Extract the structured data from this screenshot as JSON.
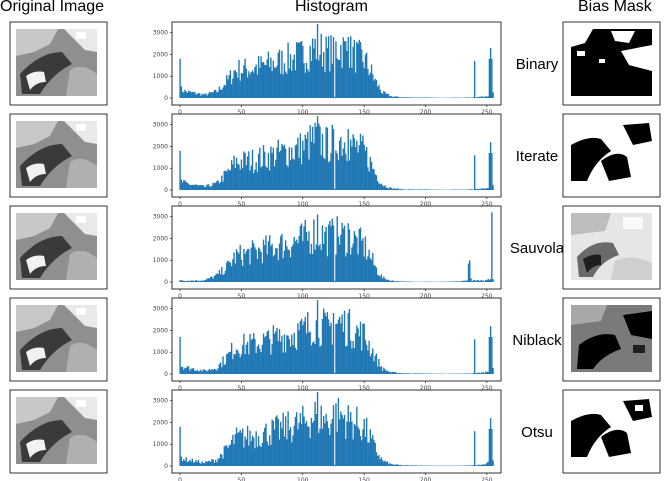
{
  "headers": {
    "original": "Original Image",
    "histogram": "Histogram",
    "mask": "Bias Mask"
  },
  "bar_color": "#1f77b4",
  "chart_data": [
    {
      "type": "bar",
      "method": "Binary",
      "title": "",
      "xlabel": "",
      "ylabel": "",
      "xlim": [
        0,
        256
      ],
      "ylim": [
        0,
        3400
      ],
      "xticks": [
        0,
        50,
        100,
        150,
        200,
        250
      ],
      "yticks": [
        0,
        1000,
        2000,
        3000
      ],
      "yticklabels": [
        "0",
        "1000",
        "2000",
        "3000"
      ],
      "base_profile": [
        [
          0,
          1800
        ],
        [
          1,
          400
        ],
        [
          5,
          300
        ],
        [
          20,
          150
        ],
        [
          30,
          300
        ],
        [
          40,
          900
        ],
        [
          45,
          1300
        ],
        [
          60,
          1400
        ],
        [
          80,
          1700
        ],
        [
          100,
          2000
        ],
        [
          110,
          2400
        ],
        [
          120,
          2100
        ],
        [
          130,
          2400
        ],
        [
          140,
          2100
        ],
        [
          150,
          1800
        ],
        [
          155,
          1300
        ],
        [
          160,
          700
        ],
        [
          165,
          250
        ],
        [
          172,
          80
        ],
        [
          182,
          30
        ],
        [
          215,
          12
        ],
        [
          233,
          18
        ],
        [
          240,
          35
        ],
        [
          248,
          70
        ],
        [
          252,
          160
        ],
        [
          255,
          200
        ]
      ],
      "spikes": [
        [
          0,
          1800
        ],
        [
          112,
          3400
        ],
        [
          125,
          2800
        ],
        [
          137,
          2800
        ],
        [
          240,
          1700
        ],
        [
          252,
          1800
        ],
        [
          253,
          2300
        ],
        [
          254,
          1800
        ]
      ],
      "dips": [
        [
          126,
          50
        ]
      ],
      "mask_kind": "binary"
    },
    {
      "type": "bar",
      "method": "Iterate",
      "title": "",
      "xlabel": "",
      "ylabel": "",
      "xlim": [
        0,
        256
      ],
      "ylim": [
        0,
        3400
      ],
      "xticks": [
        0,
        50,
        100,
        150,
        200,
        250
      ],
      "yticks": [
        0,
        1000,
        2000,
        3000
      ],
      "yticklabels": [
        "0",
        "1000",
        "2000",
        "3000"
      ],
      "base_profile": [
        [
          0,
          1800
        ],
        [
          1,
          400
        ],
        [
          5,
          300
        ],
        [
          20,
          150
        ],
        [
          30,
          300
        ],
        [
          40,
          900
        ],
        [
          45,
          1300
        ],
        [
          60,
          1400
        ],
        [
          80,
          1700
        ],
        [
          100,
          2000
        ],
        [
          110,
          2400
        ],
        [
          120,
          2100
        ],
        [
          130,
          2400
        ],
        [
          140,
          2100
        ],
        [
          150,
          1800
        ],
        [
          155,
          1300
        ],
        [
          160,
          700
        ],
        [
          165,
          250
        ],
        [
          172,
          80
        ],
        [
          182,
          30
        ],
        [
          215,
          12
        ],
        [
          233,
          18
        ],
        [
          240,
          35
        ],
        [
          248,
          70
        ],
        [
          252,
          160
        ],
        [
          255,
          200
        ]
      ],
      "spikes": [
        [
          0,
          1800
        ],
        [
          112,
          3400
        ],
        [
          125,
          2800
        ],
        [
          137,
          2800
        ],
        [
          240,
          1600
        ],
        [
          252,
          1700
        ],
        [
          253,
          2200
        ],
        [
          254,
          1700
        ]
      ],
      "dips": [
        [
          126,
          50
        ]
      ],
      "mask_kind": "iterate"
    },
    {
      "type": "bar",
      "method": "Sauvola",
      "title": "",
      "xlabel": "",
      "ylabel": "",
      "xlim": [
        0,
        256
      ],
      "ylim": [
        0,
        3400
      ],
      "xticks": [
        0,
        50,
        100,
        150,
        200,
        250
      ],
      "yticks": [
        0,
        1000,
        2000,
        3000
      ],
      "yticklabels": [
        "0",
        "1000",
        "2000",
        "3000"
      ],
      "base_profile": [
        [
          0,
          100
        ],
        [
          5,
          60
        ],
        [
          20,
          80
        ],
        [
          30,
          300
        ],
        [
          40,
          800
        ],
        [
          45,
          1200
        ],
        [
          60,
          1400
        ],
        [
          80,
          1700
        ],
        [
          100,
          2000
        ],
        [
          110,
          2300
        ],
        [
          120,
          2100
        ],
        [
          130,
          2200
        ],
        [
          140,
          2000
        ],
        [
          150,
          1700
        ],
        [
          155,
          1200
        ],
        [
          160,
          600
        ],
        [
          165,
          200
        ],
        [
          172,
          60
        ],
        [
          182,
          20
        ],
        [
          215,
          10
        ],
        [
          228,
          30
        ],
        [
          233,
          60
        ],
        [
          236,
          260
        ],
        [
          238,
          80
        ],
        [
          248,
          50
        ],
        [
          252,
          150
        ],
        [
          255,
          150
        ]
      ],
      "spikes": [
        [
          112,
          3100
        ],
        [
          125,
          2600
        ],
        [
          137,
          2700
        ],
        [
          235,
          850
        ],
        [
          236,
          1000
        ],
        [
          254,
          3200
        ]
      ],
      "dips": [
        [
          126,
          50
        ]
      ],
      "mask_kind": "sauvola"
    },
    {
      "type": "bar",
      "method": "Niblack",
      "title": "",
      "xlabel": "",
      "ylabel": "",
      "xlim": [
        0,
        256
      ],
      "ylim": [
        0,
        3400
      ],
      "xticks": [
        0,
        50,
        100,
        150,
        200,
        250
      ],
      "yticks": [
        0,
        1000,
        2000,
        3000
      ],
      "yticklabels": [
        "0",
        "1000",
        "2000",
        "3000"
      ],
      "base_profile": [
        [
          0,
          1800
        ],
        [
          1,
          400
        ],
        [
          5,
          300
        ],
        [
          20,
          150
        ],
        [
          30,
          300
        ],
        [
          40,
          900
        ],
        [
          45,
          1300
        ],
        [
          60,
          1400
        ],
        [
          80,
          1700
        ],
        [
          100,
          2000
        ],
        [
          110,
          2400
        ],
        [
          120,
          2100
        ],
        [
          130,
          2400
        ],
        [
          140,
          2100
        ],
        [
          150,
          1800
        ],
        [
          155,
          1300
        ],
        [
          160,
          700
        ],
        [
          165,
          250
        ],
        [
          172,
          80
        ],
        [
          182,
          30
        ],
        [
          215,
          12
        ],
        [
          233,
          18
        ],
        [
          240,
          35
        ],
        [
          248,
          70
        ],
        [
          252,
          160
        ],
        [
          255,
          200
        ]
      ],
      "spikes": [
        [
          0,
          1700
        ],
        [
          112,
          3400
        ],
        [
          125,
          2800
        ],
        [
          137,
          2800
        ],
        [
          240,
          1600
        ],
        [
          252,
          1700
        ],
        [
          253,
          2200
        ],
        [
          254,
          1700
        ]
      ],
      "dips": [
        [
          126,
          50
        ]
      ],
      "mask_kind": "niblack"
    },
    {
      "type": "bar",
      "method": "Otsu",
      "title": "",
      "xlabel": "",
      "ylabel": "",
      "xlim": [
        0,
        256
      ],
      "ylim": [
        0,
        3400
      ],
      "xticks": [
        0,
        50,
        100,
        150,
        200,
        250
      ],
      "yticks": [
        0,
        1000,
        2000,
        3000
      ],
      "yticklabels": [
        "0",
        "1000",
        "2000",
        "3000"
      ],
      "base_profile": [
        [
          0,
          1800
        ],
        [
          1,
          400
        ],
        [
          5,
          300
        ],
        [
          20,
          150
        ],
        [
          30,
          300
        ],
        [
          40,
          900
        ],
        [
          45,
          1300
        ],
        [
          60,
          1400
        ],
        [
          80,
          1700
        ],
        [
          100,
          2000
        ],
        [
          110,
          2400
        ],
        [
          120,
          2100
        ],
        [
          130,
          2400
        ],
        [
          140,
          2100
        ],
        [
          150,
          1800
        ],
        [
          155,
          1300
        ],
        [
          160,
          700
        ],
        [
          165,
          250
        ],
        [
          172,
          80
        ],
        [
          182,
          30
        ],
        [
          215,
          12
        ],
        [
          233,
          18
        ],
        [
          240,
          35
        ],
        [
          248,
          70
        ],
        [
          252,
          160
        ],
        [
          255,
          200
        ]
      ],
      "spikes": [
        [
          0,
          1800
        ],
        [
          112,
          3400
        ],
        [
          125,
          2800
        ],
        [
          137,
          2800
        ],
        [
          240,
          1600
        ],
        [
          252,
          1700
        ],
        [
          253,
          2200
        ],
        [
          254,
          1700
        ]
      ],
      "dips": [
        [
          126,
          50
        ]
      ],
      "mask_kind": "otsu"
    }
  ]
}
